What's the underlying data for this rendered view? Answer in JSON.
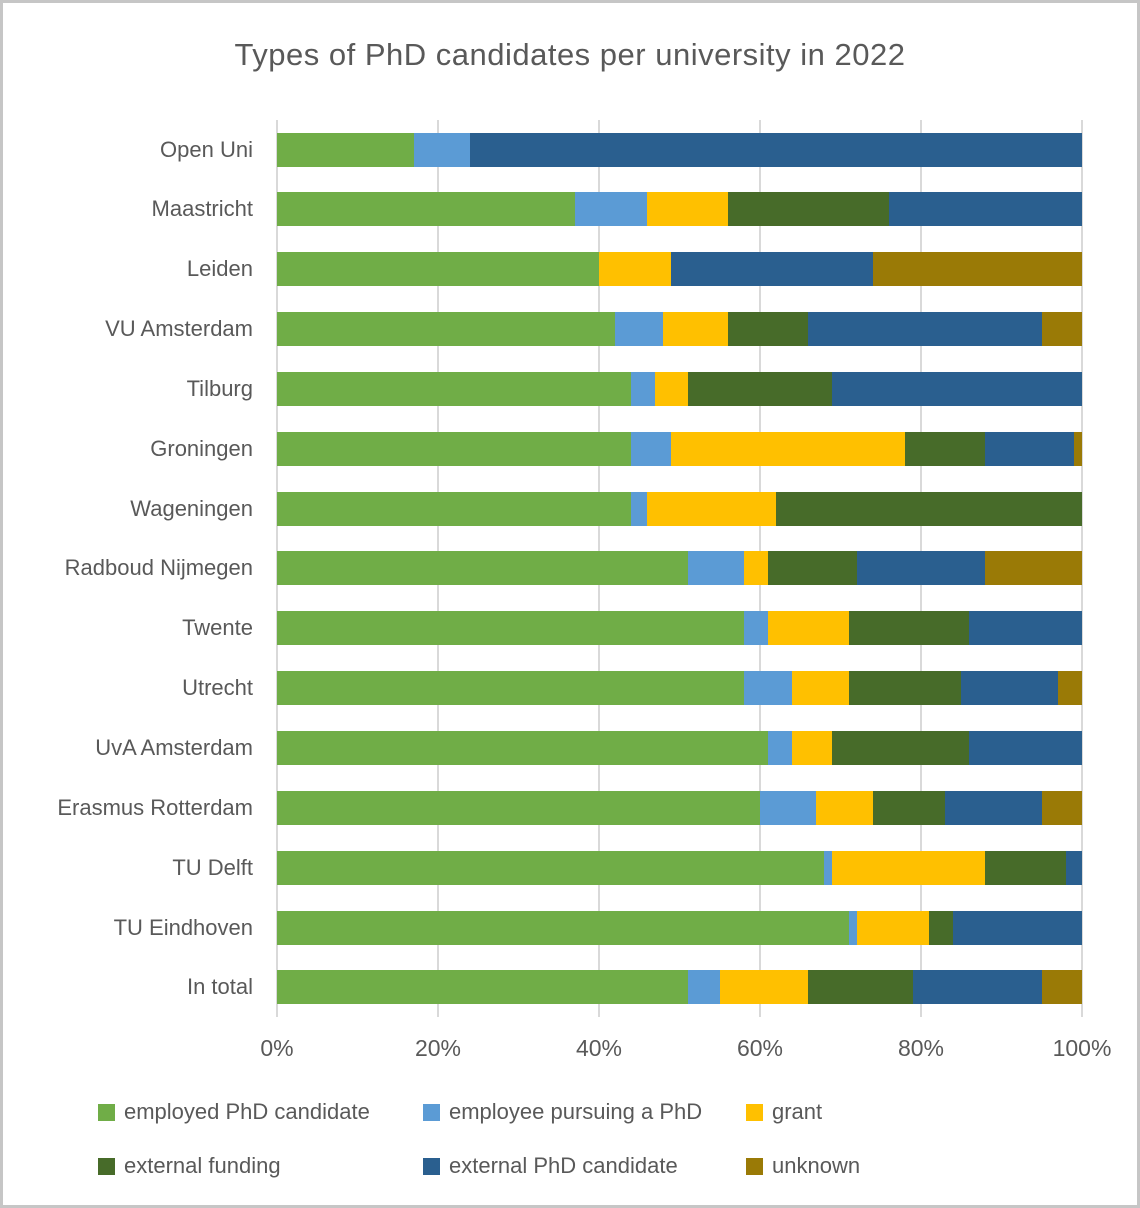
{
  "chart_data": {
    "type": "bar",
    "orientation": "horizontal",
    "stacked": true,
    "unit": "percent",
    "title": "Types of PhD candidates per university in 2022",
    "categories": [
      "Open Uni",
      "Maastricht",
      "Leiden",
      "VU Amsterdam",
      "Tilburg",
      "Groningen",
      "Wageningen",
      "Radboud Nijmegen",
      "Twente",
      "Utrecht",
      "UvA Amsterdam",
      "Erasmus Rotterdam",
      "TU Delft",
      "TU Eindhoven",
      "In total"
    ],
    "series": [
      {
        "name": "employed PhD candidate",
        "color": "#70AD47",
        "values": [
          17,
          37,
          40,
          42,
          44,
          44,
          44,
          51,
          58,
          58,
          61,
          60,
          68,
          71,
          51
        ]
      },
      {
        "name": "employee pursuing a PhD",
        "color": "#5B9BD5",
        "values": [
          7,
          9,
          0,
          6,
          3,
          5,
          2,
          7,
          3,
          6,
          3,
          7,
          1,
          1,
          4
        ]
      },
      {
        "name": "grant",
        "color": "#FFC000",
        "values": [
          0,
          10,
          9,
          8,
          4,
          29,
          16,
          3,
          10,
          7,
          5,
          7,
          19,
          9,
          11
        ]
      },
      {
        "name": "external funding",
        "color": "#476B29",
        "values": [
          0,
          20,
          0,
          10,
          18,
          10,
          38,
          11,
          15,
          14,
          17,
          9,
          10,
          3,
          13
        ]
      },
      {
        "name": "external PhD candidate",
        "color": "#2A5F8F",
        "values": [
          76,
          24,
          25,
          29,
          31,
          11,
          0,
          16,
          14,
          12,
          14,
          12,
          2,
          16,
          16
        ]
      },
      {
        "name": "unknown",
        "color": "#9A7A06",
        "values": [
          0,
          0,
          26,
          5,
          0,
          1,
          0,
          12,
          0,
          3,
          0,
          5,
          0,
          0,
          5
        ]
      }
    ],
    "x_axis": {
      "ticks": [
        "0%",
        "20%",
        "40%",
        "60%",
        "80%",
        "100%"
      ],
      "range": [
        0,
        100
      ],
      "grid": true
    },
    "legend": {
      "position": "bottom",
      "entries": [
        "employed PhD candidate",
        "employee pursuing a PhD",
        "grant",
        "external funding",
        "external PhD candidate",
        "unknown"
      ]
    },
    "text_color": "#595959",
    "gridline_color": "#D9D9D9"
  }
}
